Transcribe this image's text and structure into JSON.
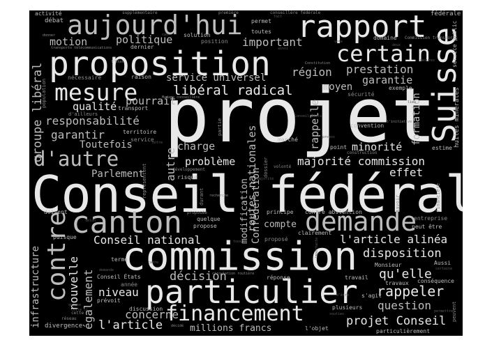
{
  "palette": {
    "background": "#000000",
    "bright": "#e8e8e8",
    "mid": "#bdbdbd",
    "dim": "#8a8a8a",
    "faint": "#5a5a5a"
  },
  "words": {
    "projet": "projet",
    "conseil_federal": "Conseil fédéral",
    "commission": "commission",
    "particulier": "particulier",
    "proposition": "proposition",
    "rapport": "rapport",
    "aujourdhui": "aujourd'hui",
    "suisse": "Suisse",
    "canton": "canton",
    "contre": "contre",
    "demande": "demande",
    "mesure": "mesure",
    "certain": "certain",
    "financement": "financement",
    "daautre": "d'autre",
    "rappeler": "rappeler",
    "liberal_radical": "libéral radical",
    "groupe_liberal": "groupe libéral",
    "conseil_national": "Conseil national",
    "larticle_alinea": "l'article alinéa",
    "disposition": "disposition",
    "quelle": "qu'elle",
    "question": "question",
    "projet_conseil": "projet Conseil",
    "larticle": "l'article",
    "concerne": "concerne",
    "decision": "décision",
    "niveau": "niveau",
    "nouvelle": "nouvelle",
    "egalement": "également",
    "infrastructure": "infrastructure",
    "millions_francs": "millions francs",
    "majorite_commission": "majorité commission",
    "effet": "effet",
    "minorite": "minorité",
    "charge": "charge",
    "probleme": "problème",
    "autre": "autre",
    "parlement": "Parlement",
    "toutefois": "Toutefois",
    "garantir": "garantir",
    "responsabilite": "responsabilité",
    "qualite": "qualité",
    "pourrait": "pourrait",
    "service_universel": "service universel",
    "region": "région",
    "prestation": "prestation",
    "garantie": "garantie",
    "moyen": "moyen",
    "rappelle": "rappelle",
    "formation": "formation",
    "motion": "motion",
    "politique": "politique",
    "important": "important",
    "routes_nationales": "routes nationales",
    "modification": "modification",
    "confederation": "Confédération",
    "compte": "compte",
    "divergence": "divergence",
    "debat": "débat",
    "activite": "activité",
    "solution": "solution",
    "toutes": "toutes",
    "permet": "permet",
    "position": "position",
    "dernier": "dernier",
    "raison": "raison",
    "necessaire": "nécessaire",
    "transport": "transport",
    "territoire": "territoire",
    "service": "service",
    "securite": "sécurité",
    "exemple": "exemple",
    "convention": "convention",
    "point": "point",
    "marche": "marché",
    "travail": "travail",
    "reponse": "réponse",
    "proposition_small": "proposé",
    "clairement": "clairement",
    "principe": "principe",
    "contre_abstention": "contre abstention",
    "doivent": "doivent",
    "propose": "propose",
    "quelque": "quelque",
    "puisque": "puisque",
    "terme": "terme",
    "conseil_etats": "Conseil États",
    "annee": "année",
    "prevoit": "prévoit",
    "discussion": "discussion",
    "plusieurs": "plusieurs",
    "lobjet": "l'objet",
    "particulierement": "particulièrement",
    "peut_etre": "peut être",
    "entreprise": "entreprise",
    "aussi": "Aussi",
    "monsieur": "Monsieur",
    "travaux": "travaux",
    "consequence": "conséquence",
    "sagit": "s'agit",
    "estime": "estime",
    "federale": "fédérale",
    "huiles_minerales": "huiles minérales",
    "service_public": "service public",
    "supplementaire": "supplémentaire",
    "premiere": "première",
    "conseillere_federale": "conseillère fédérale",
    "domaine": "domaine",
    "commission_transports": "Commission transports",
    "population": "population",
    "dailleurs": "d'ailleurs",
    "risque": "risque",
    "representent": "représentent",
    "developpement": "développement",
    "durant": "durant",
    "partie": "partie",
    "dossier": "dossier",
    "volonte": "volonté",
    "construction": "construction",
    "financiere": "financière",
    "savoir": "savoir",
    "peuvent": "peuvent",
    "circulation_routiere": "circulation routière",
    "recherche": "recherche",
    "proposee": "proposée",
    "madame_conseillere": "Madame conseillère",
    "transports_telecom": "transports télécommunications",
    "cette": "cette",
    "reseau": "réseau",
    "decide": "décidé",
    "donner": "donner",
    "letat": "l'État",
    "constitution": "Constitution",
    "linitiative": "l'initiative",
    "vote": "vote",
    "fait": "fait",
    "deux": "deux",
    "ainsi": "ainsi",
    "cas": "cas",
    "propos": "propos",
    "majorite": "majorité",
    "importante": "importante",
    "demande_small": "demande",
    "soutien": "soutien",
    "etre": "d'être",
    "permettre": "permettre",
    "certaine": "certaine",
    "quune": "qu'une",
    "celle_ci": "celle ci",
    "selon": "selon",
    "cadre": "cadre",
    "conseil_etats_small": "Conseil États",
    "lieu": "lieu",
    "mesure_small": "mesures",
    "tous": "tous",
    "notre": "notre"
  }
}
